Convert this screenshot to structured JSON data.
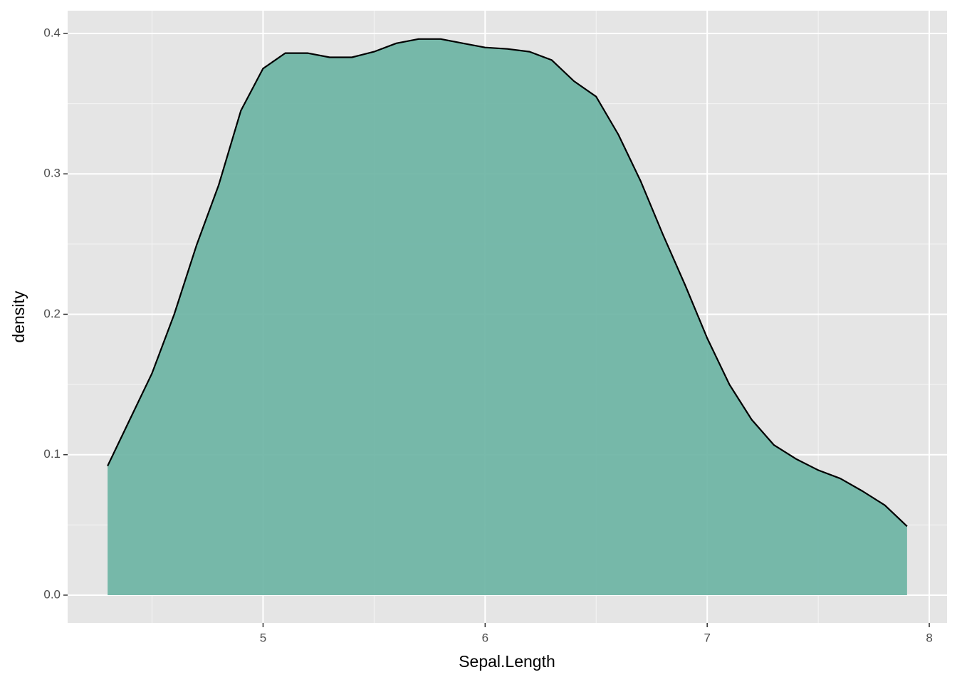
{
  "chart_data": {
    "type": "area",
    "x_label": "Sepal.Length",
    "y_label": "density",
    "x": [
      4.3,
      4.4,
      4.5,
      4.6,
      4.7,
      4.8,
      4.9,
      5.0,
      5.1,
      5.2,
      5.3,
      5.4,
      5.5,
      5.6,
      5.7,
      5.8,
      5.9,
      6.0,
      6.1,
      6.2,
      6.3,
      6.4,
      6.5,
      6.6,
      6.7,
      6.8,
      6.9,
      7.0,
      7.1,
      7.2,
      7.3,
      7.4,
      7.5,
      7.6,
      7.7,
      7.8,
      7.9
    ],
    "values": [
      0.092,
      0.125,
      0.158,
      0.2,
      0.249,
      0.292,
      0.345,
      0.375,
      0.386,
      0.386,
      0.383,
      0.383,
      0.387,
      0.393,
      0.396,
      0.396,
      0.393,
      0.39,
      0.389,
      0.387,
      0.381,
      0.366,
      0.355,
      0.328,
      0.295,
      0.257,
      0.221,
      0.183,
      0.15,
      0.125,
      0.107,
      0.097,
      0.089,
      0.083,
      0.074,
      0.064,
      0.049
    ],
    "color": "#69b3a2",
    "alpha": 0.9,
    "line_color": "#000000",
    "xlim": [
      4.12,
      8.08
    ],
    "xticks": [
      5,
      6,
      7,
      8
    ],
    "ylim": [
      -0.0198,
      0.4162
    ],
    "yticks": [
      {
        "value": 0,
        "label": "0.0"
      },
      0.1,
      0.2,
      0.3,
      0.4
    ],
    "grid": true
  }
}
